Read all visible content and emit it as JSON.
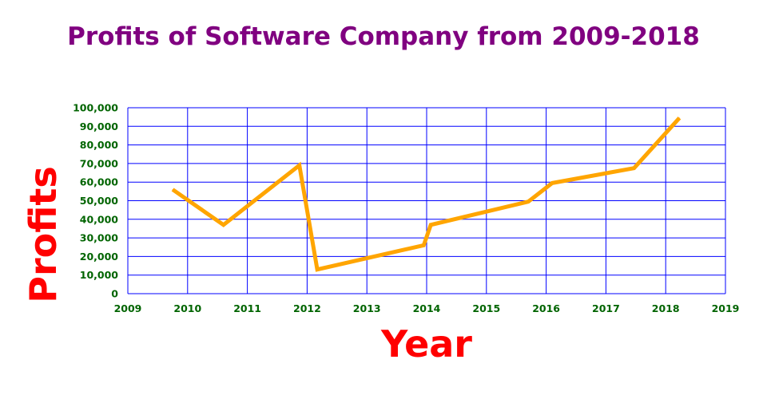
{
  "chart_data": {
    "type": "line",
    "title": "Profits of Software Company from 2009-2018",
    "xlabel": "Year",
    "ylabel": "Profits",
    "xlim": [
      2009,
      2019
    ],
    "ylim": [
      0,
      100000
    ],
    "x_ticks": [
      "2009",
      "2010",
      "2011",
      "2012",
      "2013",
      "2014",
      "2015",
      "2016",
      "2017",
      "2018",
      "2019"
    ],
    "y_ticks": [
      "0",
      "10,000",
      "20,000",
      "30,000",
      "40,000",
      "50,000",
      "60,000",
      "70,000",
      "80,000",
      "90,000",
      "100,000"
    ],
    "grid": true,
    "series": [
      {
        "x": [
          2009.75,
          2010.6,
          2011.87,
          2012.17,
          2013.95,
          2014.07,
          2015.7,
          2016.1,
          2017.47,
          2018.23
        ],
        "y": [
          56000,
          37000,
          69000,
          13000,
          26000,
          37000,
          49500,
          59500,
          67500,
          94500
        ],
        "color": "#ffa500"
      }
    ]
  },
  "colors": {
    "title": "#800080",
    "axis_title": "#ff0000",
    "tick_label": "#006400",
    "grid": "#0000ff",
    "line": "#ffa500"
  }
}
